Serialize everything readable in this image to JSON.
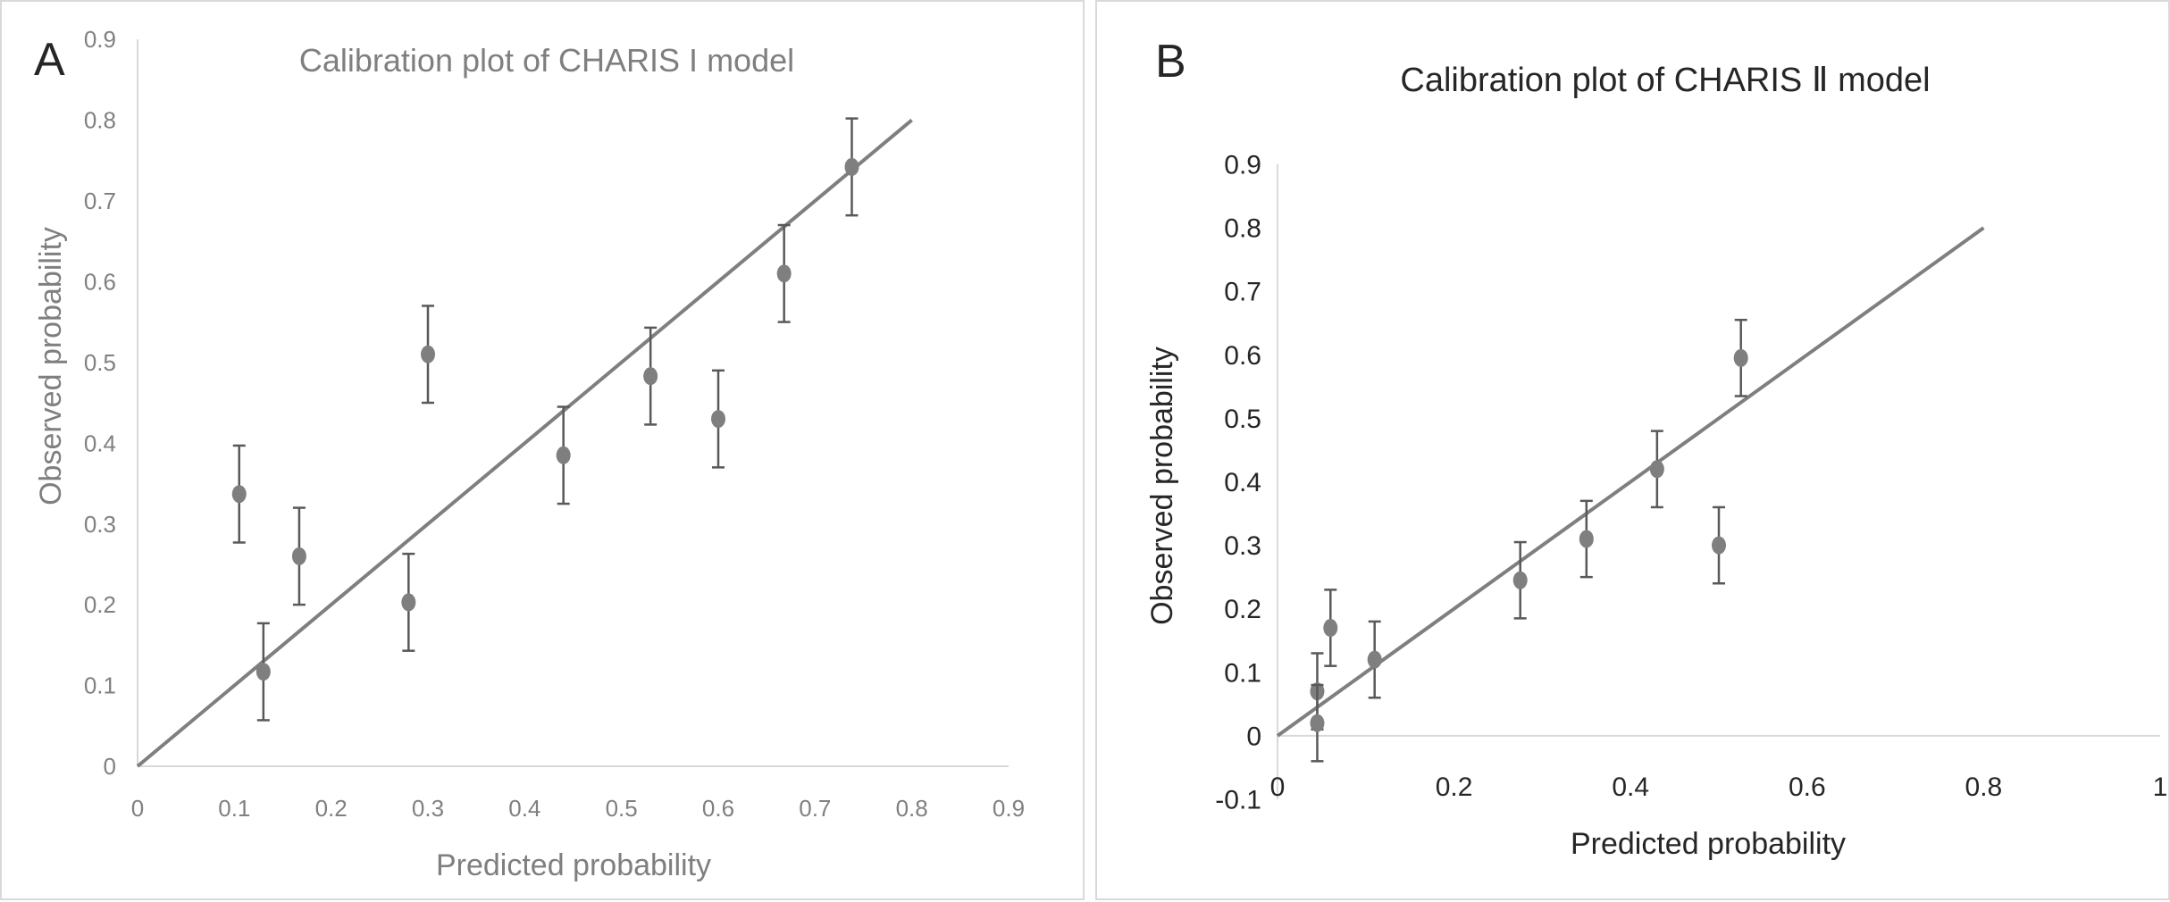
{
  "chart_data": [
    {
      "panel_label": "A",
      "type": "scatter",
      "title": "Calibration plot of CHARIS I model",
      "xlabel": "Predicted probability",
      "ylabel": "Observed probability",
      "xlim": [
        0,
        0.9
      ],
      "ylim": [
        0,
        0.9
      ],
      "xticks": [
        "0",
        "0.1",
        "0.2",
        "0.3",
        "0.4",
        "0.5",
        "0.6",
        "0.7",
        "0.8",
        "0.9"
      ],
      "yticks": [
        "0",
        "0.1",
        "0.2",
        "0.3",
        "0.4",
        "0.5",
        "0.6",
        "0.7",
        "0.8",
        "0.9"
      ],
      "reference_line": {
        "x": [
          0,
          0.8
        ],
        "y": [
          0,
          0.8
        ]
      },
      "points": [
        {
          "x": 0.105,
          "y": 0.337,
          "err": 0.06
        },
        {
          "x": 0.13,
          "y": 0.117,
          "err": 0.06
        },
        {
          "x": 0.167,
          "y": 0.26,
          "err": 0.06
        },
        {
          "x": 0.28,
          "y": 0.203,
          "err": 0.06
        },
        {
          "x": 0.3,
          "y": 0.51,
          "err": 0.06
        },
        {
          "x": 0.44,
          "y": 0.385,
          "err": 0.06
        },
        {
          "x": 0.53,
          "y": 0.483,
          "err": 0.06
        },
        {
          "x": 0.6,
          "y": 0.43,
          "err": 0.06
        },
        {
          "x": 0.668,
          "y": 0.61,
          "err": 0.06
        },
        {
          "x": 0.738,
          "y": 0.742,
          "err": 0.06
        }
      ],
      "grid": false,
      "colors": {
        "marker": "#7f7f7f",
        "line": "#7f7f7f",
        "axis": "#d9d9d9",
        "text": "#808080",
        "title": "#7f7f7f"
      }
    },
    {
      "panel_label": "B",
      "type": "scatter",
      "title": "Calibration plot of CHARIS Ⅱ model",
      "xlabel": "Predicted probability",
      "ylabel": "Observed probability",
      "xlim": [
        0,
        1
      ],
      "ylim": [
        -0.1,
        0.9
      ],
      "xticks": [
        "0",
        "0.2",
        "0.4",
        "0.6",
        "0.8",
        "1"
      ],
      "yticks": [
        "-0.1",
        "0",
        "0.1",
        "0.2",
        "0.3",
        "0.4",
        "0.5",
        "0.6",
        "0.7",
        "0.8",
        "0.9"
      ],
      "reference_line": {
        "x": [
          0,
          0.8
        ],
        "y": [
          0,
          0.8
        ]
      },
      "points": [
        {
          "x": 0.045,
          "y": 0.07,
          "err": 0.06
        },
        {
          "x": 0.045,
          "y": 0.02,
          "err": 0.06
        },
        {
          "x": 0.06,
          "y": 0.17,
          "err": 0.06
        },
        {
          "x": 0.11,
          "y": 0.12,
          "err": 0.06
        },
        {
          "x": 0.275,
          "y": 0.245,
          "err": 0.06
        },
        {
          "x": 0.35,
          "y": 0.31,
          "err": 0.06
        },
        {
          "x": 0.43,
          "y": 0.42,
          "err": 0.06
        },
        {
          "x": 0.5,
          "y": 0.3,
          "err": 0.06
        },
        {
          "x": 0.525,
          "y": 0.595,
          "err": 0.06
        }
      ],
      "grid": false,
      "colors": {
        "marker": "#7f7f7f",
        "line": "#7f7f7f",
        "axis": "#d9d9d9",
        "text": "#262626",
        "title": "#262626"
      }
    }
  ]
}
